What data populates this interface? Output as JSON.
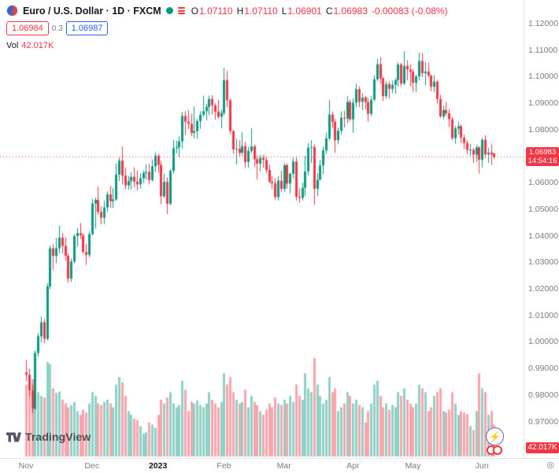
{
  "header": {
    "symbol_title": "Euro / U.S. Dollar · 1D · FXCM",
    "ohlc": [
      {
        "label": "O",
        "value": "1.07110"
      },
      {
        "label": "H",
        "value": "1.07110"
      },
      {
        "label": "L",
        "value": "1.06901"
      },
      {
        "label": "C",
        "value": "1.06983"
      }
    ],
    "change": "-0.00083 (-0.08%)",
    "bid": "1.06984",
    "spread": "0.3",
    "ask": "1.06987",
    "vol_label": "Vol",
    "vol_value": "42.017K"
  },
  "price_line": {
    "price": "1.06983",
    "countdown": "14:54:16",
    "value": 1.06983
  },
  "volume_badge": "42.017K",
  "footer": {
    "logo_text": "TradingView"
  },
  "colors": {
    "up": "#089981",
    "down": "#f23645",
    "accent_blue": "#2962ff",
    "axis_text": "#787b86",
    "price_line": "#f23645"
  },
  "chart_data": {
    "type": "candlestick",
    "title": "Euro / U.S. Dollar",
    "symbol": "EUR/USD",
    "exchange": "FXCM",
    "interval": "1D",
    "grid": false,
    "legend_position": "top-left",
    "y_ticks": [
      "1.12000",
      "1.11000",
      "1.10000",
      "1.09000",
      "1.08000",
      "1.07000",
      "1.06000",
      "1.05000",
      "1.04000",
      "1.03000",
      "1.02000",
      "1.01000",
      "1.00000",
      "0.99000",
      "0.98000",
      "0.97000"
    ],
    "x_ticks": [
      {
        "label": "Nov",
        "index": 0
      },
      {
        "label": "Dec",
        "index": 22
      },
      {
        "label": "2023",
        "index": 44,
        "major": true
      },
      {
        "label": "Feb",
        "index": 66
      },
      {
        "label": "Mar",
        "index": 86
      },
      {
        "label": "Apr",
        "index": 109
      },
      {
        "label": "May",
        "index": 129
      },
      {
        "label": "Jun",
        "index": 152
      }
    ],
    "last_bar": {
      "o": 1.0711,
      "h": 1.0711,
      "l": 1.06901,
      "c": 1.06983,
      "change": -0.00083,
      "change_pct": -0.08
    },
    "candles": [
      [
        0.9885,
        0.9932,
        0.9851,
        0.9876
      ],
      [
        0.9876,
        0.9899,
        0.9794,
        0.9817
      ],
      [
        0.9817,
        0.984,
        0.9731,
        0.9749
      ],
      [
        0.9749,
        0.9968,
        0.9743,
        0.9958
      ],
      [
        0.9958,
        1.0033,
        0.9944,
        1.0021
      ],
      [
        1.0021,
        1.0096,
        0.9998,
        1.0074
      ],
      [
        1.0074,
        1.0087,
        0.9995,
        1.0012
      ],
      [
        1.0012,
        1.0222,
        1.0005,
        1.0209
      ],
      [
        1.0209,
        1.0364,
        1.0199,
        1.0353
      ],
      [
        1.0353,
        1.0368,
        1.0271,
        1.0324
      ],
      [
        1.0324,
        1.0392,
        1.0297,
        1.0353
      ],
      [
        1.0353,
        1.0438,
        1.0334,
        1.0393
      ],
      [
        1.0393,
        1.0411,
        1.0334,
        1.0362
      ],
      [
        1.0362,
        1.0394,
        1.0306,
        1.0325
      ],
      [
        1.0325,
        1.0334,
        1.0223,
        1.0239
      ],
      [
        1.0239,
        1.0315,
        1.0226,
        1.0303
      ],
      [
        1.0303,
        1.0405,
        1.0296,
        1.0399
      ],
      [
        1.0399,
        1.0428,
        1.036,
        1.041
      ],
      [
        1.041,
        1.0448,
        1.0387,
        1.0402
      ],
      [
        1.0402,
        1.0409,
        1.0333,
        1.0339
      ],
      [
        1.0339,
        1.0369,
        1.029,
        1.0328
      ],
      [
        1.0328,
        1.0416,
        1.0318,
        1.0406
      ],
      [
        1.0406,
        1.0539,
        1.0402,
        1.0522
      ],
      [
        1.0522,
        1.0545,
        1.0427,
        1.0535
      ],
      [
        1.0535,
        1.0585,
        1.0479,
        1.049
      ],
      [
        1.049,
        1.0511,
        1.0443,
        1.0468
      ],
      [
        1.0468,
        1.0531,
        1.0444,
        1.0507
      ],
      [
        1.0507,
        1.0567,
        1.0489,
        1.0556
      ],
      [
        1.0556,
        1.0589,
        1.0505,
        1.0531
      ],
      [
        1.0531,
        1.058,
        1.0505,
        1.0537
      ],
      [
        1.0537,
        1.0673,
        1.0531,
        1.0631
      ],
      [
        1.0631,
        1.0695,
        1.0606,
        1.0683
      ],
      [
        1.0683,
        1.0736,
        1.0594,
        1.0627
      ],
      [
        1.0627,
        1.0658,
        1.0575,
        1.059
      ],
      [
        1.059,
        1.0625,
        1.0574,
        1.0606
      ],
      [
        1.0606,
        1.0639,
        1.0575,
        1.0622
      ],
      [
        1.0622,
        1.0658,
        1.0583,
        1.0604
      ],
      [
        1.0604,
        1.0646,
        1.0571,
        1.0594
      ],
      [
        1.0594,
        1.0636,
        1.0578,
        1.0617
      ],
      [
        1.0617,
        1.0647,
        1.0599,
        1.0637
      ],
      [
        1.0637,
        1.067,
        1.0611,
        1.0641
      ],
      [
        1.0641,
        1.0672,
        1.0596,
        1.061
      ],
      [
        1.061,
        1.0687,
        1.0605,
        1.0662
      ],
      [
        1.0662,
        1.0714,
        1.064,
        1.0702
      ],
      [
        1.0702,
        1.0711,
        1.0637,
        1.0668
      ],
      [
        1.0668,
        1.0683,
        1.0519,
        1.0549
      ],
      [
        1.0549,
        1.0635,
        1.0542,
        1.0603
      ],
      [
        1.0603,
        1.0621,
        1.0482,
        1.0521
      ],
      [
        1.0521,
        1.0651,
        1.0515,
        1.0645
      ],
      [
        1.0645,
        1.0761,
        1.0634,
        1.073
      ],
      [
        1.073,
        1.0759,
        1.0711,
        1.0734
      ],
      [
        1.0734,
        1.0776,
        1.0697,
        1.0756
      ],
      [
        1.0756,
        1.0868,
        1.0729,
        1.0852
      ],
      [
        1.0852,
        1.087,
        1.078,
        1.083
      ],
      [
        1.083,
        1.0874,
        1.0802,
        1.0822
      ],
      [
        1.0822,
        1.086,
        1.0775,
        1.0788
      ],
      [
        1.0788,
        1.0887,
        1.0766,
        1.0794
      ],
      [
        1.0794,
        1.084,
        1.0766,
        1.0832
      ],
      [
        1.0832,
        1.087,
        1.0803,
        1.0856
      ],
      [
        1.0856,
        1.0927,
        1.0848,
        1.087
      ],
      [
        1.087,
        1.0898,
        1.0835,
        1.0886
      ],
      [
        1.0886,
        1.0929,
        1.0855,
        1.0916
      ],
      [
        1.0916,
        1.093,
        1.0858,
        1.0892
      ],
      [
        1.0892,
        1.09,
        1.0837,
        1.0868
      ],
      [
        1.0868,
        1.0913,
        1.084,
        1.0849
      ],
      [
        1.0849,
        1.0875,
        1.0805,
        1.0863
      ],
      [
        1.0863,
        1.1033,
        1.0855,
        1.0987
      ],
      [
        1.0987,
        1.1022,
        1.0885,
        1.0911
      ],
      [
        1.0911,
        1.0918,
        1.0782,
        1.0795
      ],
      [
        1.0795,
        1.08,
        1.0709,
        1.0726
      ],
      [
        1.0726,
        1.0766,
        1.0669,
        1.0727
      ],
      [
        1.0727,
        1.076,
        1.07,
        1.0713
      ],
      [
        1.0713,
        1.0791,
        1.0702,
        1.0738
      ],
      [
        1.0738,
        1.0754,
        1.0656,
        1.0678
      ],
      [
        1.0678,
        1.0735,
        1.0656,
        1.072
      ],
      [
        1.072,
        1.0805,
        1.0711,
        1.0737
      ],
      [
        1.0737,
        1.0744,
        1.066,
        1.0689
      ],
      [
        1.0689,
        1.0703,
        1.0613,
        1.0672
      ],
      [
        1.0672,
        1.0706,
        1.0642,
        1.0694
      ],
      [
        1.0694,
        1.0705,
        1.0657,
        1.0686
      ],
      [
        1.0686,
        1.0697,
        1.0636,
        1.0648
      ],
      [
        1.0648,
        1.0668,
        1.0598,
        1.0604
      ],
      [
        1.0604,
        1.0626,
        1.0576,
        1.0598
      ],
      [
        1.0598,
        1.0618,
        1.0536,
        1.0546
      ],
      [
        1.0546,
        1.0624,
        1.0533,
        1.0608
      ],
      [
        1.0608,
        1.0645,
        1.0565,
        1.0577
      ],
      [
        1.0577,
        1.0673,
        1.0565,
        1.0666
      ],
      [
        1.0666,
        1.0673,
        1.0577,
        1.0597
      ],
      [
        1.0597,
        1.0638,
        1.056,
        1.0634
      ],
      [
        1.0634,
        1.0694,
        1.0617,
        1.068
      ],
      [
        1.068,
        1.0695,
        1.0532,
        1.0547
      ],
      [
        1.0547,
        1.0578,
        1.0524,
        1.0543
      ],
      [
        1.0543,
        1.0601,
        1.0533,
        1.0581
      ],
      [
        1.0581,
        1.0701,
        1.0551,
        1.0643
      ],
      [
        1.0643,
        1.0749,
        1.0628,
        1.0732
      ],
      [
        1.0732,
        1.076,
        1.0674,
        1.0734
      ],
      [
        1.0734,
        1.0745,
        1.0516,
        1.0577
      ],
      [
        1.0577,
        1.0636,
        1.0551,
        1.0611
      ],
      [
        1.0611,
        1.0686,
        1.0611,
        1.0665
      ],
      [
        1.0665,
        1.0737,
        1.0632,
        1.0722
      ],
      [
        1.0722,
        1.0789,
        1.0709,
        1.0767
      ],
      [
        1.0767,
        1.0912,
        1.0759,
        1.0857
      ],
      [
        1.0857,
        1.0869,
        1.0805,
        1.083
      ],
      [
        1.083,
        1.084,
        1.0713,
        1.076
      ],
      [
        1.076,
        1.0808,
        1.0745,
        1.0796
      ],
      [
        1.0796,
        1.0869,
        1.0783,
        1.0845
      ],
      [
        1.0845,
        1.0872,
        1.0808,
        1.0842
      ],
      [
        1.0842,
        1.0926,
        1.0824,
        1.0904
      ],
      [
        1.0904,
        1.0913,
        1.0831,
        1.0839
      ],
      [
        1.0839,
        1.0918,
        1.0788,
        1.0902
      ],
      [
        1.0902,
        1.0973,
        1.0884,
        1.0953
      ],
      [
        1.0953,
        1.0963,
        1.0885,
        1.0905
      ],
      [
        1.0905,
        1.0938,
        1.0874,
        1.0921
      ],
      [
        1.0921,
        1.0927,
        1.0876,
        1.0904
      ],
      [
        1.0904,
        1.0919,
        1.0831,
        1.086
      ],
      [
        1.086,
        1.0928,
        1.085,
        1.0913
      ],
      [
        1.0913,
        1.1005,
        1.0908,
        1.099
      ],
      [
        1.099,
        1.1068,
        1.0983,
        1.1047
      ],
      [
        1.1047,
        1.1075,
        1.0973,
        1.0994
      ],
      [
        1.0994,
        1.0999,
        1.0908,
        1.0927
      ],
      [
        1.0927,
        1.0983,
        1.0917,
        1.0972
      ],
      [
        1.0972,
        1.0981,
        1.0917,
        1.0954
      ],
      [
        1.0954,
        1.0985,
        1.0938,
        1.0969
      ],
      [
        1.0969,
        1.0994,
        1.0936,
        1.0987
      ],
      [
        1.0987,
        1.1054,
        1.0963,
        1.1046
      ],
      [
        1.1046,
        1.1052,
        1.0964,
        1.0974
      ],
      [
        1.0974,
        1.1096,
        1.0968,
        1.104
      ],
      [
        1.104,
        1.1062,
        1.0987,
        1.1027
      ],
      [
        1.1027,
        1.1046,
        1.0962,
        1.1019
      ],
      [
        1.1019,
        1.1028,
        1.0942,
        1.0977
      ],
      [
        1.0977,
        1.1007,
        1.0941,
        1.1001
      ],
      [
        1.1001,
        1.1091,
        1.0986,
        1.1059
      ],
      [
        1.1059,
        1.1089,
        1.0998,
        1.1013
      ],
      [
        1.1013,
        1.1055,
        1.0967,
        1.1019
      ],
      [
        1.1019,
        1.1053,
        1.0996,
        1.1004
      ],
      [
        1.1004,
        1.1007,
        1.0945,
        1.0962
      ],
      [
        1.0962,
        1.1006,
        1.0941,
        1.0981
      ],
      [
        1.0981,
        1.0988,
        1.0899,
        1.0916
      ],
      [
        1.0916,
        1.0932,
        1.0844,
        1.085
      ],
      [
        1.085,
        1.089,
        1.084,
        1.0874
      ],
      [
        1.0874,
        1.0904,
        1.0852,
        1.0862
      ],
      [
        1.0862,
        1.0878,
        1.081,
        1.084
      ],
      [
        1.084,
        1.0848,
        1.076,
        1.0768
      ],
      [
        1.0768,
        1.0815,
        1.0747,
        1.0805
      ],
      [
        1.0805,
        1.0831,
        1.0782,
        1.0813
      ],
      [
        1.0813,
        1.082,
        1.0749,
        1.077
      ],
      [
        1.077,
        1.0782,
        1.0727,
        1.075
      ],
      [
        1.075,
        1.076,
        1.0708,
        1.0724
      ],
      [
        1.0724,
        1.0746,
        1.0701,
        1.0724
      ],
      [
        1.0724,
        1.0732,
        1.0674,
        1.0706
      ],
      [
        1.0706,
        1.0744,
        1.0678,
        1.0733
      ],
      [
        1.0733,
        1.0738,
        1.0635,
        1.0687
      ],
      [
        1.0687,
        1.0768,
        1.0658,
        1.0762
      ],
      [
        1.0762,
        1.0779,
        1.0693,
        1.0707
      ],
      [
        1.0707,
        1.0732,
        1.0675,
        1.0714
      ],
      [
        1.0714,
        1.0745,
        1.0667,
        1.0707
      ],
      [
        1.0711,
        1.0711,
        1.06901,
        1.06983
      ]
    ],
    "volumes": [
      95,
      88,
      102,
      118,
      85,
      80,
      78,
      125,
      122,
      90,
      84,
      86,
      75,
      70,
      65,
      68,
      72,
      60,
      55,
      62,
      58,
      70,
      85,
      80,
      70,
      68,
      72,
      75,
      70,
      65,
      95,
      105,
      98,
      80,
      60,
      55,
      50,
      48,
      40,
      30,
      32,
      45,
      42,
      38,
      55,
      75,
      70,
      78,
      85,
      70,
      65,
      68,
      100,
      88,
      60,
      72,
      70,
      74,
      68,
      65,
      70,
      85,
      75,
      70,
      65,
      72,
      110,
      95,
      105,
      85,
      75,
      70,
      72,
      88,
      65,
      80,
      72,
      68,
      60,
      55,
      62,
      70,
      65,
      78,
      70,
      68,
      75,
      70,
      80,
      72,
      95,
      80,
      75,
      110,
      90,
      85,
      130,
      95,
      80,
      70,
      75,
      105,
      85,
      90,
      60,
      65,
      70,
      85,
      80,
      70,
      75,
      68,
      65,
      45,
      60,
      70,
      95,
      100,
      80,
      65,
      70,
      62,
      68,
      65,
      85,
      80,
      90,
      75,
      70,
      65,
      70,
      95,
      90,
      85,
      60,
      65,
      80,
      85,
      90,
      60,
      58,
      62,
      85,
      70,
      55,
      60,
      58,
      56,
      40,
      35,
      60,
      110,
      90,
      85,
      55,
      60,
      42.017
    ],
    "volume_unit": "K",
    "ylim_prices": [
      0.966,
      1.129
    ]
  }
}
